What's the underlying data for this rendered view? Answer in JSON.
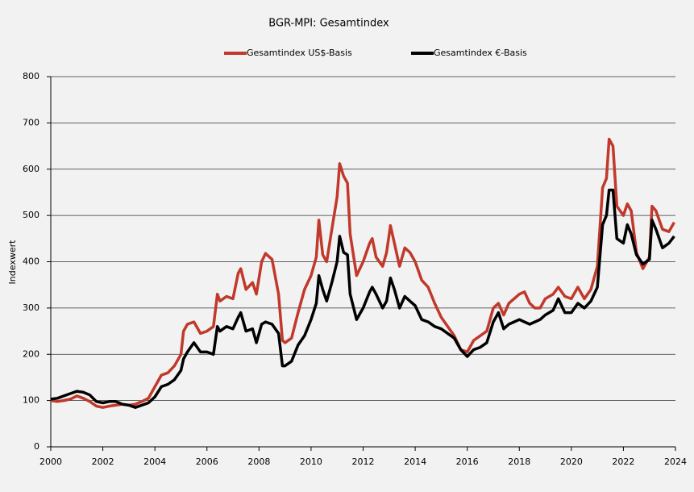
{
  "chart_data": {
    "type": "line",
    "title": "BGR-MPI:  Gesamtindex",
    "ylabel": "Indexwert",
    "xlim": [
      2000,
      2024
    ],
    "xticks": [
      2000,
      2002,
      2004,
      2006,
      2008,
      2010,
      2012,
      2014,
      2016,
      2018,
      2020,
      2022,
      2024
    ],
    "ylim": [
      0,
      800
    ],
    "yticks": [
      0,
      100,
      200,
      300,
      400,
      500,
      600,
      700,
      800
    ],
    "grid": true,
    "legend": "top",
    "x": [
      2000,
      2000.25,
      2000.5,
      2000.75,
      2001,
      2001.25,
      2001.5,
      2001.75,
      2002,
      2002.25,
      2002.5,
      2002.75,
      2003,
      2003.25,
      2003.5,
      2003.75,
      2004,
      2004.25,
      2004.5,
      2004.75,
      2005,
      2005.1,
      2005.25,
      2005.5,
      2005.75,
      2006,
      2006.25,
      2006.4,
      2006.5,
      2006.75,
      2007,
      2007.2,
      2007.3,
      2007.5,
      2007.75,
      2007.9,
      2008.1,
      2008.25,
      2008.5,
      2008.75,
      2008.9,
      2009,
      2009.25,
      2009.5,
      2009.75,
      2010,
      2010.2,
      2010.3,
      2010.45,
      2010.6,
      2010.8,
      2011,
      2011.1,
      2011.25,
      2011.4,
      2011.5,
      2011.75,
      2012,
      2012.25,
      2012.35,
      2012.5,
      2012.75,
      2012.9,
      2013.05,
      2013.2,
      2013.4,
      2013.6,
      2013.8,
      2014,
      2014.25,
      2014.5,
      2014.75,
      2015,
      2015.25,
      2015.5,
      2015.75,
      2016,
      2016.25,
      2016.5,
      2016.75,
      2017,
      2017.2,
      2017.4,
      2017.6,
      2017.8,
      2018,
      2018.2,
      2018.4,
      2018.6,
      2018.8,
      2019,
      2019.3,
      2019.5,
      2019.75,
      2020,
      2020.25,
      2020.5,
      2020.75,
      2021,
      2021.2,
      2021.35,
      2021.45,
      2021.6,
      2021.75,
      2022,
      2022.15,
      2022.3,
      2022.5,
      2022.75,
      2023,
      2023.1,
      2023.25,
      2023.5,
      2023.75,
      2023.95
    ],
    "series": [
      {
        "name": "Gesamtindex US$-Basis",
        "color": "#c0392b",
        "values": [
          100,
          98,
          100,
          103,
          110,
          105,
          98,
          88,
          85,
          88,
          90,
          92,
          90,
          92,
          98,
          105,
          130,
          155,
          160,
          175,
          200,
          250,
          265,
          270,
          245,
          250,
          260,
          330,
          315,
          325,
          320,
          375,
          385,
          340,
          355,
          330,
          400,
          418,
          405,
          330,
          230,
          225,
          235,
          290,
          340,
          370,
          410,
          490,
          415,
          400,
          470,
          540,
          612,
          585,
          570,
          460,
          370,
          400,
          440,
          450,
          410,
          390,
          420,
          478,
          440,
          390,
          430,
          420,
          400,
          360,
          345,
          310,
          280,
          260,
          240,
          210,
          205,
          230,
          240,
          250,
          300,
          310,
          285,
          310,
          320,
          330,
          335,
          310,
          300,
          300,
          320,
          330,
          345,
          325,
          320,
          345,
          320,
          340,
          390,
          560,
          580,
          665,
          650,
          520,
          500,
          525,
          510,
          420,
          385,
          410,
          520,
          510,
          470,
          465,
          485
        ]
      },
      {
        "name": "Gesamtindex €-Basis",
        "color": "#000000",
        "values": [
          103,
          105,
          110,
          115,
          120,
          118,
          112,
          98,
          95,
          98,
          98,
          92,
          90,
          85,
          90,
          95,
          108,
          130,
          135,
          145,
          165,
          190,
          205,
          225,
          205,
          205,
          200,
          260,
          250,
          260,
          255,
          280,
          290,
          250,
          255,
          225,
          265,
          270,
          265,
          245,
          175,
          175,
          185,
          220,
          240,
          275,
          310,
          370,
          340,
          315,
          355,
          400,
          455,
          420,
          415,
          330,
          275,
          300,
          335,
          345,
          330,
          300,
          315,
          365,
          340,
          300,
          325,
          315,
          305,
          275,
          270,
          260,
          255,
          245,
          235,
          210,
          195,
          210,
          215,
          225,
          270,
          290,
          255,
          265,
          270,
          275,
          270,
          265,
          270,
          275,
          285,
          295,
          320,
          290,
          290,
          310,
          300,
          315,
          345,
          480,
          500,
          555,
          555,
          450,
          440,
          480,
          460,
          415,
          395,
          405,
          490,
          470,
          430,
          440,
          455
        ]
      }
    ]
  }
}
